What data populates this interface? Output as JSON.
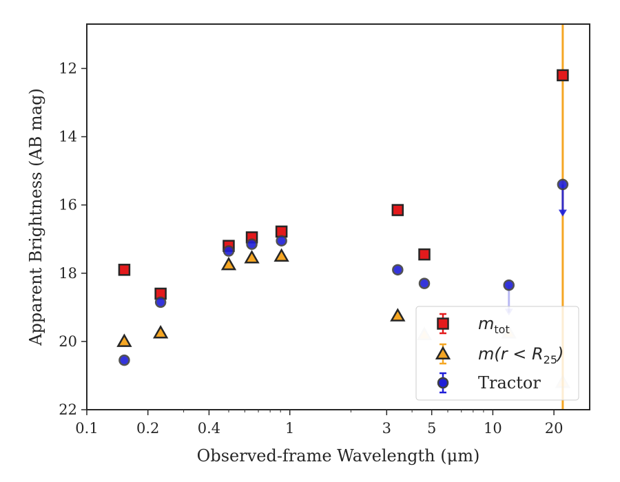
{
  "chart_data": {
    "type": "scatter",
    "title": "",
    "xlabel": "Observed-frame Wavelength (μm)",
    "ylabel": "Apparent Brightness (AB mag)",
    "xscale": "log",
    "xlim": [
      0.1,
      30
    ],
    "ylim": [
      22,
      10.7
    ],
    "y_inverted": true,
    "x_ticks": [
      0.1,
      0.2,
      0.4,
      1,
      3,
      5,
      10,
      20
    ],
    "x_tick_labels": [
      "0.1",
      "0.2",
      "0.4",
      "1",
      "3",
      "5",
      "10",
      "20"
    ],
    "y_ticks": [
      12,
      14,
      16,
      18,
      20,
      22
    ],
    "y_tick_labels": [
      "12",
      "14",
      "16",
      "18",
      "20",
      "22"
    ],
    "grid": false,
    "legend_position": "lower-right",
    "vertical_line": {
      "x": 22.1,
      "color": "#F5A623"
    },
    "series": [
      {
        "name": "m_tot",
        "legend_main": "m",
        "legend_sub": "tot",
        "marker": "square",
        "color": "#E31A1C",
        "edge": "#262626",
        "points": [
          {
            "x": 0.153,
            "y": 17.9
          },
          {
            "x": 0.231,
            "y": 18.6
          },
          {
            "x": 0.5,
            "y": 17.2
          },
          {
            "x": 0.65,
            "y": 16.95
          },
          {
            "x": 0.91,
            "y": 16.78
          },
          {
            "x": 3.4,
            "y": 16.15
          },
          {
            "x": 4.6,
            "y": 17.45
          },
          {
            "x": 22.1,
            "y": 12.2
          }
        ]
      },
      {
        "name": "m(r < R25)",
        "legend_main": "m(r < R",
        "legend_sub": "25",
        "legend_tail": ")",
        "marker": "triangle",
        "color": "#F5A623",
        "edge": "#262626",
        "points": [
          {
            "x": 0.153,
            "y": 20.0
          },
          {
            "x": 0.231,
            "y": 19.75
          },
          {
            "x": 0.5,
            "y": 17.75
          },
          {
            "x": 0.65,
            "y": 17.55
          },
          {
            "x": 0.91,
            "y": 17.5
          },
          {
            "x": 3.4,
            "y": 19.25
          },
          {
            "x": 4.6,
            "y": 19.8,
            "faded": true
          },
          {
            "x": 12.0,
            "y": 19.75,
            "faded": true
          },
          {
            "x": 22.1,
            "y": 21.2,
            "faded": true
          }
        ]
      },
      {
        "name": "Tractor",
        "legend_main": "Tractor",
        "marker": "circle",
        "color": "#1F1FD8",
        "edge": "#404040",
        "points": [
          {
            "x": 0.153,
            "y": 20.55
          },
          {
            "x": 0.231,
            "y": 18.85
          },
          {
            "x": 0.5,
            "y": 17.35
          },
          {
            "x": 0.65,
            "y": 17.15
          },
          {
            "x": 0.91,
            "y": 17.05
          },
          {
            "x": 3.4,
            "y": 17.9
          },
          {
            "x": 4.6,
            "y": 18.3
          },
          {
            "x": 12.0,
            "y": 18.35,
            "upper_limit": true,
            "arrow_to": 19.2,
            "faded_arrow": true
          },
          {
            "x": 22.1,
            "y": 15.4,
            "upper_limit": true,
            "arrow_to": 16.3
          }
        ]
      }
    ]
  }
}
